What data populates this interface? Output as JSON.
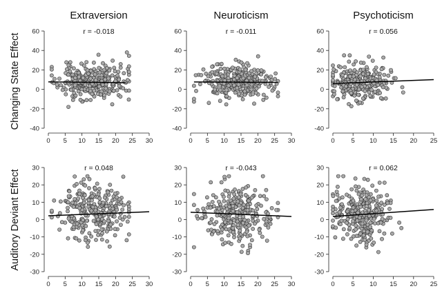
{
  "column_titles": [
    "Extraversion",
    "Neuroticism",
    "Psychoticism"
  ],
  "row_labels": [
    "Changing State Effect",
    "Auditory Deviant Effect"
  ],
  "chart_data": [
    {
      "type": "scatter",
      "id": "cs-extraversion",
      "r_label": "r = -0.018",
      "xlim": [
        0,
        30
      ],
      "x_ticks": [
        0,
        5,
        10,
        15,
        20,
        25,
        30
      ],
      "ylim": [
        -40,
        60
      ],
      "y_ticks": [
        -40,
        -20,
        0,
        20,
        40,
        60
      ],
      "fit": {
        "x": [
          0,
          23
        ],
        "y": [
          7.7,
          6.8
        ]
      },
      "n": 300,
      "x_mean": 13,
      "x_sd": 5,
      "x_range": [
        1,
        24
      ],
      "y_mean": 7.5,
      "y_sd": 9,
      "y_range": [
        -25,
        38
      ],
      "seed": 11
    },
    {
      "type": "scatter",
      "id": "cs-neuroticism",
      "r_label": "r = -0.011",
      "xlim": [
        0,
        30
      ],
      "x_ticks": [
        0,
        5,
        10,
        15,
        20,
        25,
        30
      ],
      "ylim": [
        -40,
        60
      ],
      "y_ticks": [
        -40,
        -20,
        0,
        20,
        40,
        60
      ],
      "fit": {
        "x": [
          1,
          26
        ],
        "y": [
          7.6,
          7.2
        ]
      },
      "n": 300,
      "x_mean": 13.5,
      "x_sd": 5.2,
      "x_range": [
        1,
        26
      ],
      "y_mean": 7.5,
      "y_sd": 9,
      "y_range": [
        -22,
        34
      ],
      "seed": 23
    },
    {
      "type": "scatter",
      "id": "cs-psychoticism",
      "r_label": "r = 0.056",
      "xlim": [
        0,
        25
      ],
      "x_ticks": [
        0,
        5,
        10,
        15,
        20,
        25
      ],
      "ylim": [
        -40,
        60
      ],
      "y_ticks": [
        -40,
        -20,
        0,
        20,
        40,
        60
      ],
      "fit": {
        "x": [
          0,
          25
        ],
        "y": [
          6.0,
          10.0
        ]
      },
      "n": 300,
      "x_mean": 7,
      "x_sd": 3.6,
      "x_range": [
        0,
        22
      ],
      "y_mean": 7.5,
      "y_sd": 9,
      "y_range": [
        -25,
        35
      ],
      "seed": 37
    },
    {
      "type": "scatter",
      "id": "ad-extraversion",
      "r_label": "r = 0.048",
      "xlim": [
        0,
        30
      ],
      "x_ticks": [
        0,
        5,
        10,
        15,
        20,
        25,
        30
      ],
      "ylim": [
        -30,
        30
      ],
      "y_ticks": [
        -30,
        -20,
        -10,
        0,
        10,
        20,
        30
      ],
      "fit": {
        "x": [
          0,
          30
        ],
        "y": [
          2.2,
          4.5
        ]
      },
      "n": 300,
      "x_mean": 13,
      "x_sd": 5,
      "x_range": [
        1,
        24
      ],
      "y_mean": 3.5,
      "y_sd": 8,
      "y_range": [
        -23,
        25
      ],
      "seed": 51
    },
    {
      "type": "scatter",
      "id": "ad-neuroticism",
      "r_label": "r = -0.043",
      "xlim": [
        0,
        30
      ],
      "x_ticks": [
        0,
        5,
        10,
        15,
        20,
        25,
        30
      ],
      "ylim": [
        -30,
        30
      ],
      "y_ticks": [
        -30,
        -20,
        -10,
        0,
        10,
        20,
        30
      ],
      "fit": {
        "x": [
          0,
          30
        ],
        "y": [
          4.2,
          1.8
        ]
      },
      "n": 300,
      "x_mean": 13.5,
      "x_sd": 5.2,
      "x_range": [
        1,
        26
      ],
      "y_mean": 3,
      "y_sd": 8,
      "y_range": [
        -23,
        25
      ],
      "seed": 67
    },
    {
      "type": "scatter",
      "id": "ad-psychoticism",
      "r_label": "r = 0.062",
      "xlim": [
        0,
        25
      ],
      "x_ticks": [
        0,
        5,
        10,
        15,
        20,
        25
      ],
      "ylim": [
        -30,
        30
      ],
      "y_ticks": [
        -30,
        -20,
        -10,
        0,
        10,
        20,
        30
      ],
      "fit": {
        "x": [
          0,
          25
        ],
        "y": [
          1.8,
          5.8
        ]
      },
      "n": 300,
      "x_mean": 7,
      "x_sd": 3.6,
      "x_range": [
        0,
        22
      ],
      "y_mean": 3,
      "y_sd": 8,
      "y_range": [
        -23,
        25
      ],
      "seed": 79
    }
  ]
}
